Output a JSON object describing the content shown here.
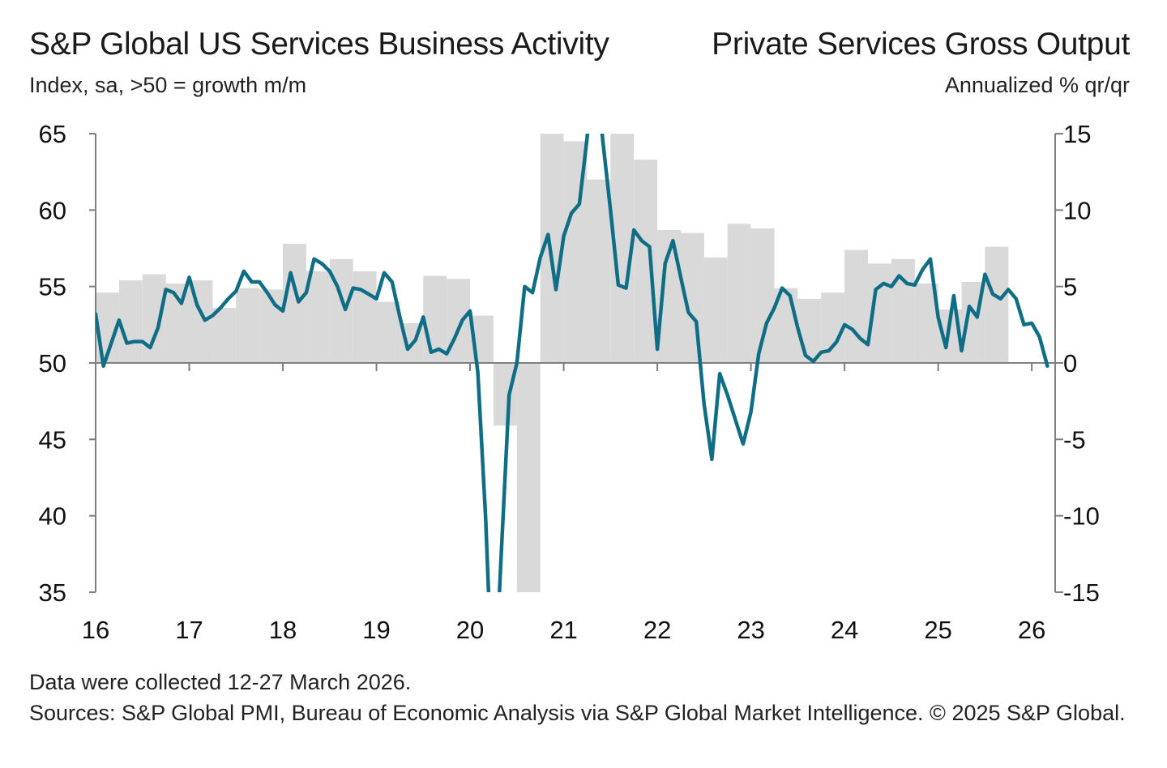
{
  "header": {
    "left_title": "S&P Global US Services Business Activity",
    "right_title": "Private Services Gross Output",
    "left_subtitle": "Index, sa, >50 = growth m/m",
    "right_subtitle": "Annualized % qr/qr"
  },
  "footer": {
    "note": "Data were collected 12-27 March 2026.",
    "sources": "Sources: S&P Global PMI, Bureau of Economic Analysis via S&P Global Market Intelligence. © 2025 S&P Global."
  },
  "colors": {
    "line": "#0f6e86",
    "bars": "#d9d9d9",
    "axis": "#7f7f7f"
  },
  "chart_data": {
    "type": "bar+line",
    "left_axis": {
      "ticks": [
        "65",
        "60",
        "55",
        "50",
        "45",
        "40",
        "35"
      ],
      "ylim": [
        35,
        65
      ]
    },
    "right_axis": {
      "ticks": [
        "15",
        "10",
        "5",
        "0",
        "-5",
        "-10",
        "-15"
      ],
      "ylim": [
        -15,
        15
      ]
    },
    "x_axis": {
      "ticks": [
        "16",
        "17",
        "18",
        "19",
        "20",
        "21",
        "22",
        "23",
        "24",
        "25",
        "26"
      ],
      "xlim": [
        2016.0,
        2026.25
      ]
    },
    "grid": false,
    "series": [
      {
        "name": "Private Services Gross Output",
        "type": "bar",
        "axis": "right",
        "x": [
          2016.0,
          2016.25,
          2016.5,
          2016.75,
          2017.0,
          2017.25,
          2017.5,
          2017.75,
          2018.0,
          2018.25,
          2018.5,
          2018.75,
          2019.0,
          2019.25,
          2019.5,
          2019.75,
          2020.0,
          2020.25,
          2020.5,
          2020.75,
          2021.0,
          2021.25,
          2021.5,
          2021.75,
          2022.0,
          2022.25,
          2022.5,
          2022.75,
          2023.0,
          2023.25,
          2023.5,
          2023.75,
          2024.0,
          2024.25,
          2024.5,
          2024.75,
          2025.0,
          2025.25,
          2025.5
        ],
        "values": [
          4.6,
          5.4,
          5.8,
          5.2,
          5.4,
          3.6,
          4.9,
          4.8,
          7.8,
          6.0,
          6.8,
          6.0,
          4.0,
          2.6,
          5.7,
          5.5,
          3.1,
          -4.1,
          -15.0,
          15.0,
          14.5,
          12.0,
          16.0,
          13.3,
          8.7,
          8.5,
          6.9,
          9.1,
          8.8,
          4.9,
          4.2,
          4.6,
          7.4,
          6.5,
          6.8,
          5.2,
          3.5,
          5.3,
          7.6
        ]
      },
      {
        "name": "S&P Global US Services Business Activity",
        "type": "line",
        "axis": "left",
        "x": [
          2016.0,
          2016.083,
          2016.167,
          2016.25,
          2016.333,
          2016.417,
          2016.5,
          2016.583,
          2016.667,
          2016.75,
          2016.833,
          2016.917,
          2017.0,
          2017.083,
          2017.167,
          2017.25,
          2017.333,
          2017.417,
          2017.5,
          2017.583,
          2017.667,
          2017.75,
          2017.833,
          2017.917,
          2018.0,
          2018.083,
          2018.167,
          2018.25,
          2018.333,
          2018.417,
          2018.5,
          2018.583,
          2018.667,
          2018.75,
          2018.833,
          2018.917,
          2019.0,
          2019.083,
          2019.167,
          2019.25,
          2019.333,
          2019.417,
          2019.5,
          2019.583,
          2019.667,
          2019.75,
          2019.833,
          2019.917,
          2020.0,
          2020.083,
          2020.167,
          2020.25,
          2020.333,
          2020.417,
          2020.5,
          2020.583,
          2020.667,
          2020.75,
          2020.833,
          2020.917,
          2021.0,
          2021.083,
          2021.167,
          2021.25,
          2021.333,
          2021.417,
          2021.5,
          2021.583,
          2021.667,
          2021.75,
          2021.833,
          2021.917,
          2022.0,
          2022.083,
          2022.167,
          2022.25,
          2022.333,
          2022.417,
          2022.5,
          2022.583,
          2022.667,
          2022.75,
          2022.833,
          2022.917,
          2023.0,
          2023.083,
          2023.167,
          2023.25,
          2023.333,
          2023.417,
          2023.5,
          2023.583,
          2023.667,
          2023.75,
          2023.833,
          2023.917,
          2024.0,
          2024.083,
          2024.167,
          2024.25,
          2024.333,
          2024.417,
          2024.5,
          2024.583,
          2024.667,
          2024.75,
          2024.833,
          2024.917,
          2025.0,
          2025.083,
          2025.167,
          2025.25,
          2025.333,
          2025.417,
          2025.5,
          2025.583,
          2025.667,
          2025.75,
          2025.833,
          2025.917,
          2026.0,
          2026.083,
          2026.167
        ],
        "values": [
          53.2,
          49.8,
          51.3,
          52.8,
          51.3,
          51.4,
          51.4,
          51.0,
          52.3,
          54.8,
          54.6,
          53.9,
          55.6,
          53.8,
          52.8,
          53.1,
          53.6,
          54.2,
          54.7,
          56.0,
          55.3,
          55.3,
          54.6,
          53.8,
          53.4,
          55.9,
          54.0,
          54.6,
          56.8,
          56.5,
          56.0,
          55.0,
          53.5,
          54.9,
          54.8,
          54.5,
          54.2,
          55.9,
          55.3,
          53.0,
          50.9,
          51.5,
          53.0,
          50.7,
          50.9,
          50.6,
          51.6,
          52.8,
          53.4,
          49.4,
          39.8,
          26.7,
          37.5,
          47.9,
          50.0,
          55.0,
          54.6,
          56.9,
          58.4,
          54.8,
          58.3,
          59.8,
          60.4,
          64.7,
          70.4,
          64.6,
          60.0,
          55.1,
          54.9,
          58.7,
          58.0,
          57.6,
          50.9,
          56.5,
          58.0,
          55.6,
          53.3,
          52.7,
          47.3,
          43.7,
          49.3,
          47.9,
          46.3,
          44.7,
          46.8,
          50.6,
          52.6,
          53.6,
          54.9,
          54.4,
          52.3,
          50.5,
          50.1,
          50.7,
          50.8,
          51.4,
          52.5,
          52.2,
          51.6,
          51.2,
          54.8,
          55.2,
          55.0,
          55.7,
          55.2,
          55.1,
          56.1,
          56.8,
          53.0,
          51.0,
          54.4,
          50.8,
          53.7,
          53.0,
          55.8,
          54.5,
          54.2,
          54.8,
          54.2,
          52.5,
          52.6,
          51.7,
          49.8
        ]
      }
    ]
  }
}
